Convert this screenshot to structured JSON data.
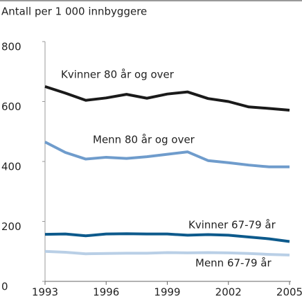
{
  "chart_data": {
    "type": "line",
    "y_axis_label": "Antall per 1 000 innbyggere",
    "x": [
      1993,
      1994,
      1995,
      1996,
      1997,
      1998,
      1999,
      2000,
      2001,
      2002,
      2003,
      2004,
      2005
    ],
    "series": [
      {
        "name": "Kvinner 80 år og over",
        "color": "#1a1a1a",
        "values": [
          650,
          628,
          604,
          612,
          624,
          611,
          625,
          632,
          610,
          600,
          582,
          577,
          571
        ]
      },
      {
        "name": "Menn 80 år og over",
        "color": "#6f9ccc",
        "values": [
          465,
          430,
          408,
          414,
          410,
          416,
          424,
          432,
          403,
          396,
          388,
          382,
          382
        ]
      },
      {
        "name": "Kvinner 67-79 år",
        "color": "#0d5a8c",
        "values": [
          157,
          158,
          152,
          158,
          159,
          158,
          158,
          154,
          156,
          154,
          148,
          142,
          133
        ]
      },
      {
        "name": "Menn 67-79 år",
        "color": "#b9cfe6",
        "values": [
          100,
          97,
          92,
          93,
          94,
          94,
          96,
          95,
          96,
          95,
          93,
          90,
          88
        ]
      }
    ],
    "xlim": [
      1993,
      2005
    ],
    "xticks": [
      1993,
      1996,
      1999,
      2002,
      2005
    ],
    "ylim": [
      0,
      800
    ],
    "yticks": [
      0,
      200,
      400,
      600,
      800
    ],
    "grid": false
  }
}
